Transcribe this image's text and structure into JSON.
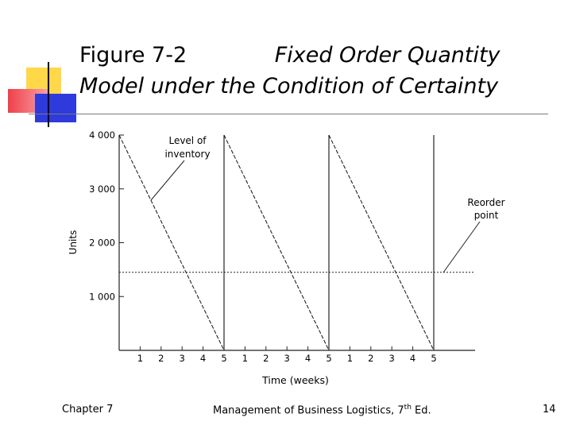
{
  "slide": {
    "title_prefix": "Figure 7-2",
    "title_italic_1": "Fixed Order Quantity",
    "title_italic_2": "Model under the Condition of Certainty",
    "footer_left": "Chapter 7",
    "footer_center_main": "Management of Business Logistics, 7",
    "footer_center_sup": "th",
    "footer_center_end": " Ed.",
    "footer_right": "14"
  },
  "colors": {
    "accent_yellow": "#FFD84A",
    "accent_red": "#F0404A",
    "accent_blue": "#2E3ADB",
    "rule": "#000000"
  },
  "chart_data": {
    "type": "line",
    "ylabel": "Units",
    "xlabel": "Time (weeks)",
    "ylim": [
      0,
      4000
    ],
    "yticks": [
      {
        "value": 1000,
        "label": "1 000"
      },
      {
        "value": 2000,
        "label": "2 000"
      },
      {
        "value": 3000,
        "label": "3 000"
      },
      {
        "value": 4000,
        "label": "4 000"
      }
    ],
    "xticks": [
      "1",
      "2",
      "3",
      "4",
      "5",
      "1",
      "2",
      "3",
      "4",
      "5",
      "1",
      "2",
      "3",
      "4",
      "5"
    ],
    "series": [
      {
        "name": "Level of inventory",
        "points": [
          [
            0,
            4000
          ],
          [
            5,
            0
          ],
          [
            5,
            4000
          ],
          [
            10,
            0
          ],
          [
            10,
            4000
          ],
          [
            15,
            0
          ],
          [
            15,
            4000
          ]
        ]
      }
    ],
    "reorder_point": 1450,
    "annotations": [
      {
        "line1": "Level of",
        "line2": "inventory",
        "target": "sawtooth"
      },
      {
        "line1": "Reorder",
        "line2": "point",
        "target": "reorder-line"
      }
    ]
  }
}
